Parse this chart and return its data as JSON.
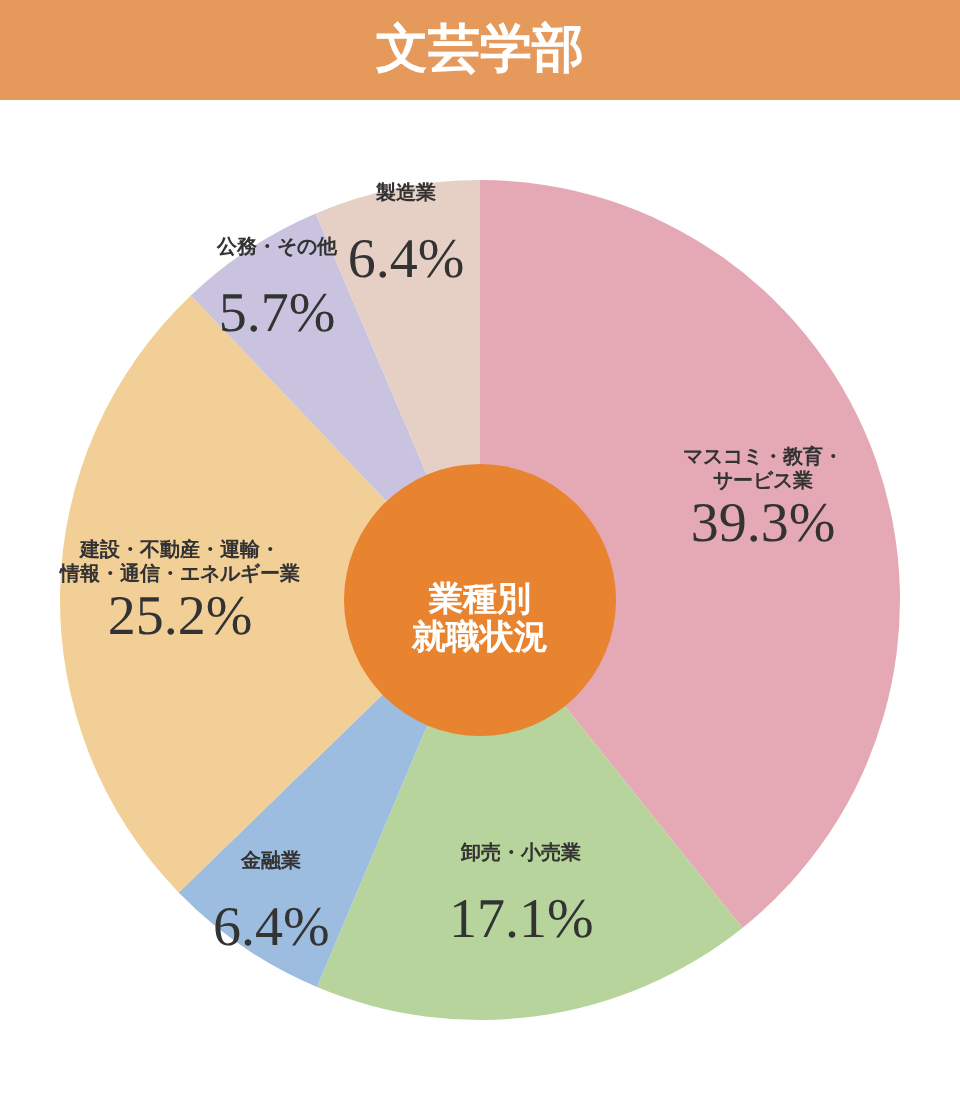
{
  "chart_data": {
    "type": "donut",
    "title": "文芸学部",
    "categories": [
      "マスコミ・教育・サービス業",
      "卸売・小売業",
      "金融業",
      "建設・不動産・運輸・情報・通信・エネルギー業",
      "公務・その他",
      "製造業"
    ],
    "values": [
      39.3,
      17.1,
      6.4,
      25.2,
      5.7,
      6.4
    ],
    "colors": [
      "#e5a9b5",
      "#b6d49b",
      "#9dbde0",
      "#f2cf96",
      "#c9c3e0",
      "#e6d0c6"
    ],
    "value_labels": [
      "39.3%",
      "17.1%",
      "6.4%",
      "25.2%",
      "5.7%",
      "6.4%"
    ],
    "annotations": [
      "業種別就職状況"
    ]
  }
}
